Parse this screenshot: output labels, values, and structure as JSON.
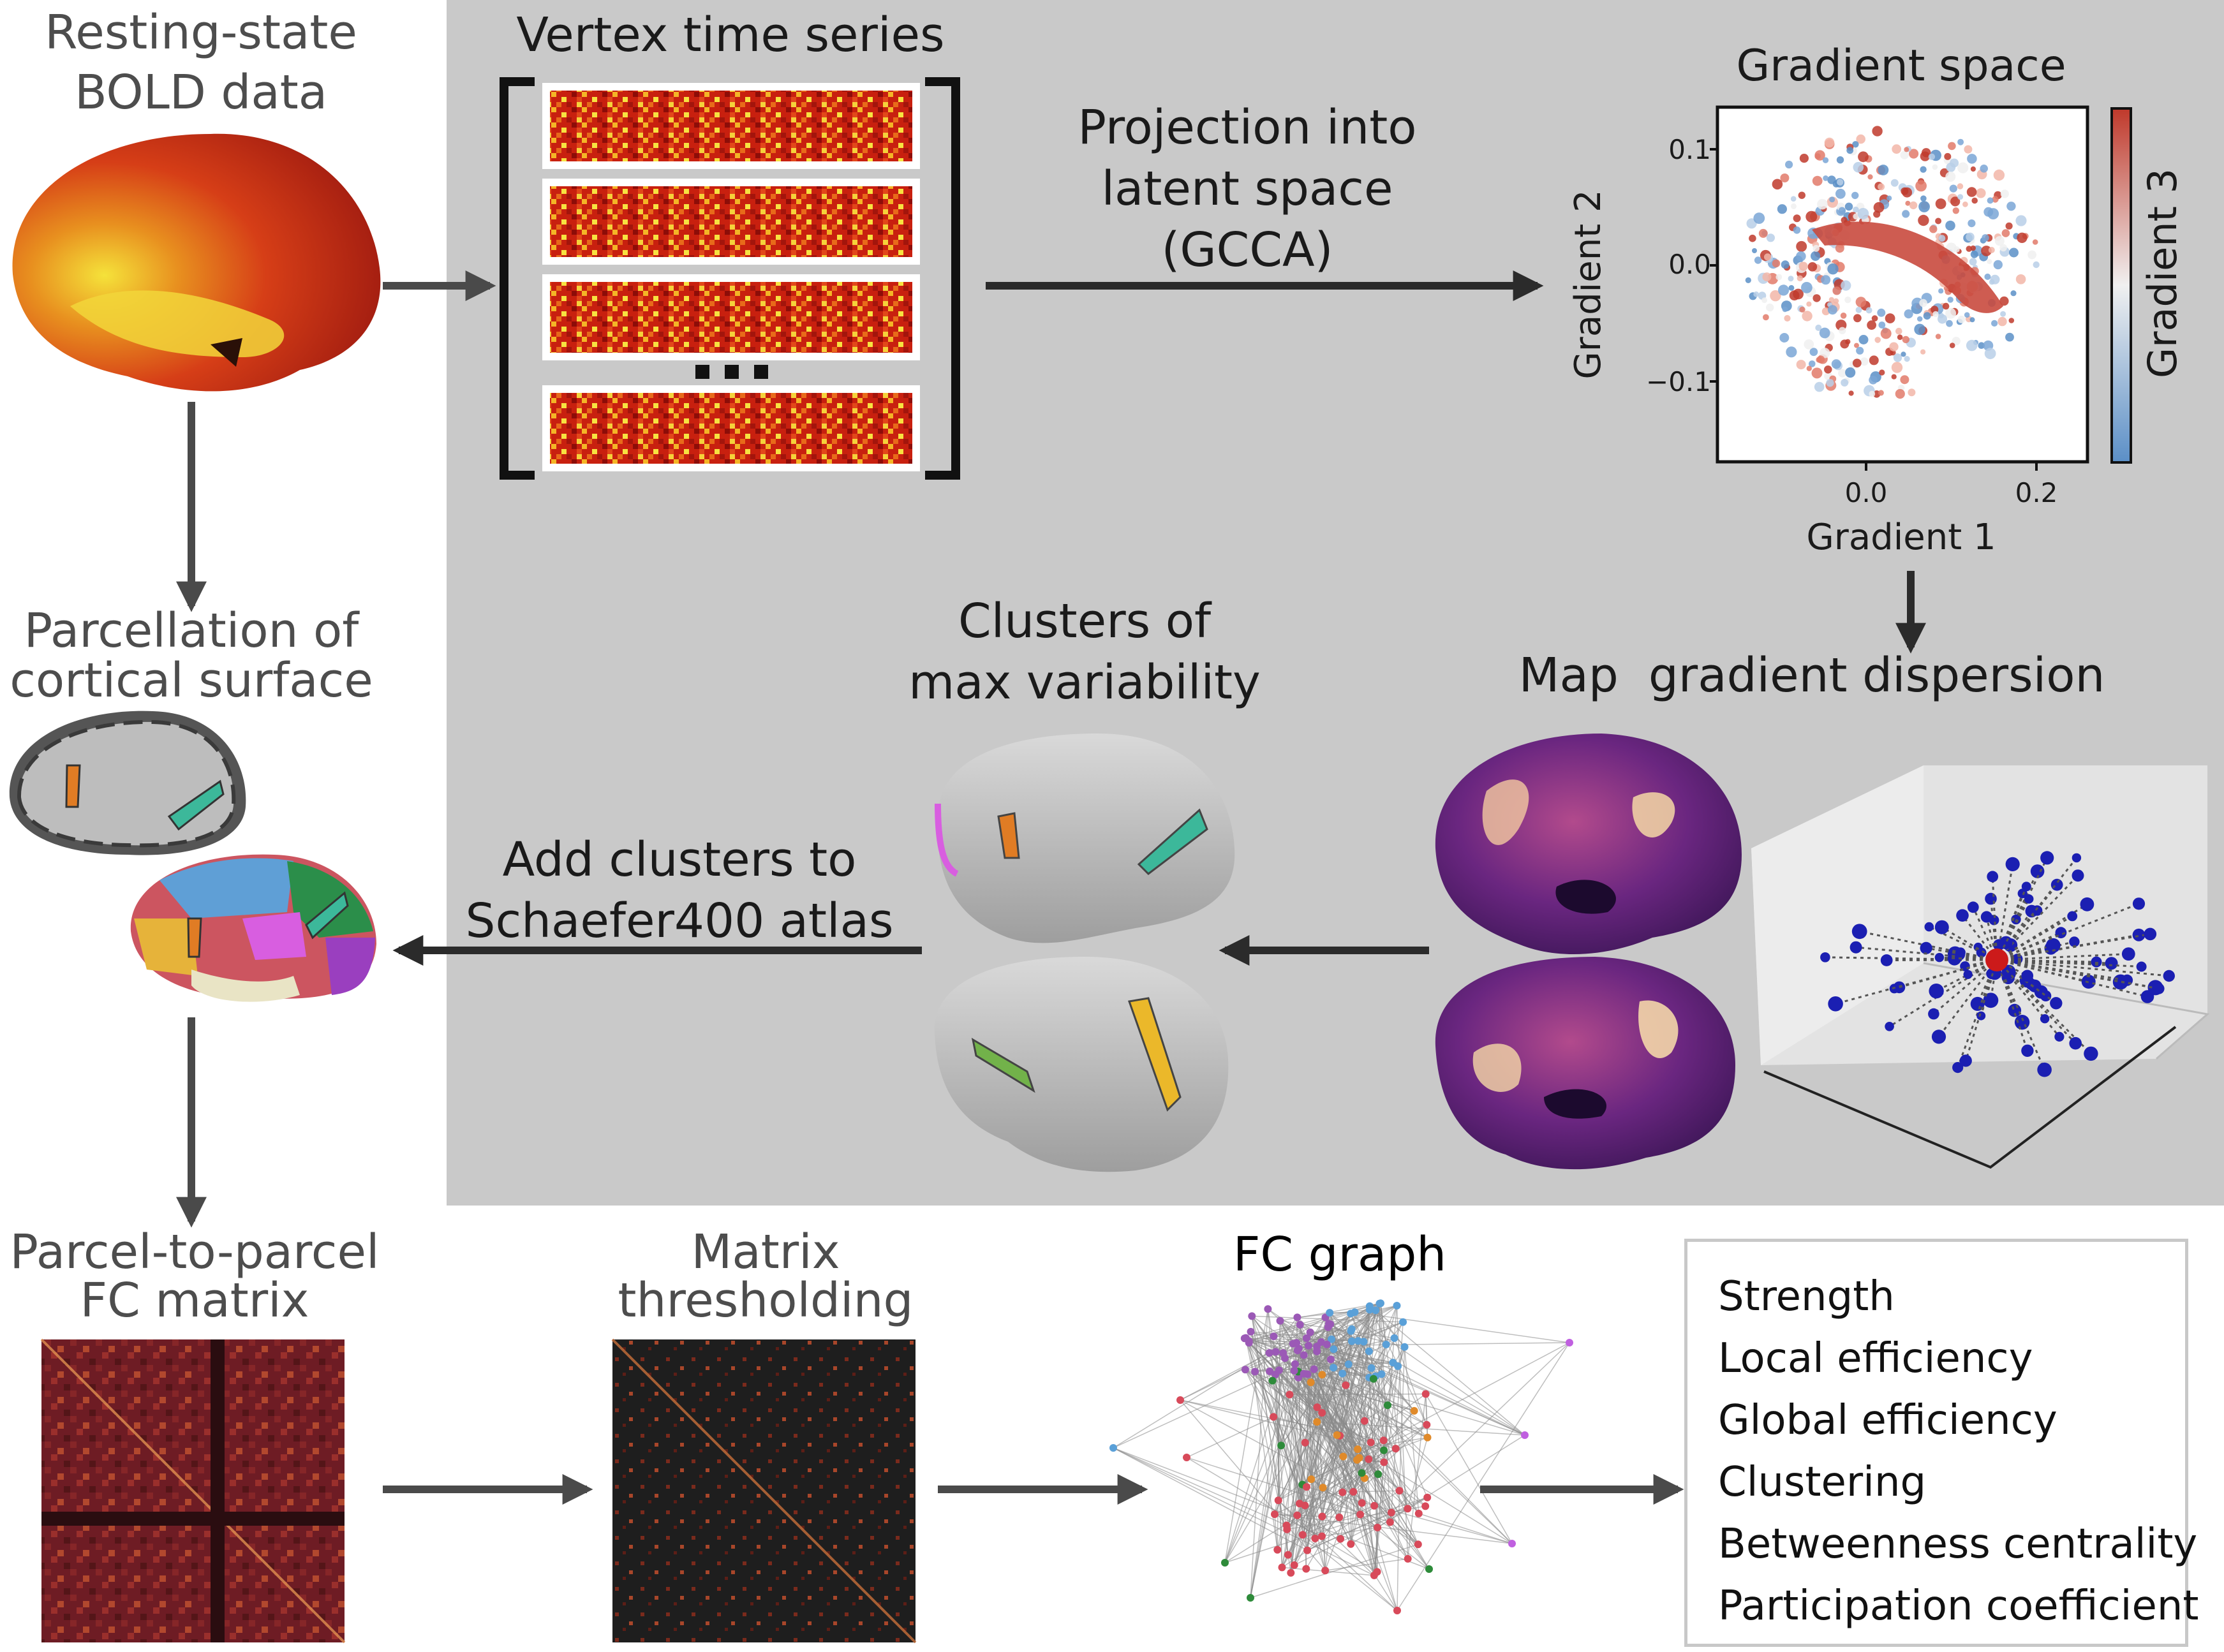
{
  "labels": {
    "resting_state": [
      "Resting-state",
      "BOLD data"
    ],
    "vertex_time_series": "Vertex time series",
    "projection": [
      "Projection into",
      "latent space",
      "(GCCA)"
    ],
    "gradient_space": "Gradient space",
    "parcellation": [
      "Parcellation of",
      "cortical surface"
    ],
    "clusters": [
      "Clusters of",
      "max variability"
    ],
    "map_dispersion": "Map  gradient dispersion",
    "add_clusters": [
      "Add clusters to",
      "Schaefer400 atlas"
    ],
    "fc_matrix": [
      "Parcel-to-parcel",
      "FC matrix"
    ],
    "thresholding": [
      "Matrix",
      "thresholding"
    ],
    "fc_graph": "FC graph"
  },
  "metrics": [
    "Strength",
    "Local efficiency",
    "Global efficiency",
    "Clustering",
    "Betweenness centrality",
    "Participation coefficient"
  ],
  "chart_data": {
    "type": "scatter",
    "title": "Gradient space",
    "xlabel": "Gradient 1",
    "ylabel": "Gradient 2",
    "colorbar_label": "Gradient 3",
    "x_ticks": [
      "0.0",
      "0.2"
    ],
    "y_ticks": [
      "0.1",
      "0.0",
      "−0.1"
    ],
    "xlim": [
      -0.16,
      0.25
    ],
    "ylim": [
      -0.17,
      0.14
    ]
  },
  "colors": {
    "panel_gray": "#c9c9c9",
    "arrow": "#2b2b2b",
    "arrow_gray": "#4a4a4a",
    "heat_dark": "#7a0a0a",
    "heat_mid": "#d83a1a",
    "heat_light": "#f6e43a",
    "coolwarm_red": "#c0392b",
    "coolwarm_blue": "#5b8fc7",
    "magma_dark": "#2d0f4a",
    "magma_bright": "#fde3a7",
    "cluster_orange": "#e07c24",
    "cluster_teal": "#3cb89a",
    "cluster_yellow": "#ebb82a",
    "cluster_green": "#72b24a",
    "scatter_blue": "#1b1fb2",
    "scatter_red": "#cc1a1a"
  }
}
